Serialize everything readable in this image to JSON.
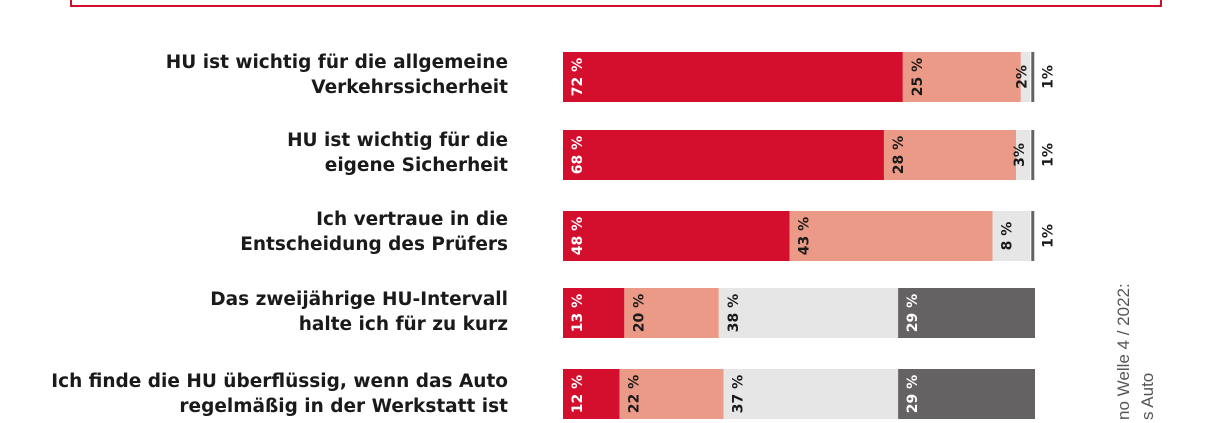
{
  "chart_data": {
    "type": "bar",
    "stacked": true,
    "orientation": "horizontal",
    "categories": [
      [
        "HU ist wichtig für die allgemeine",
        "Verkehrssicherheit"
      ],
      [
        "HU ist wichtig für die",
        "eigene Sicherheit"
      ],
      [
        "Ich vertraue in die",
        "Entscheidung des Prüfers"
      ],
      [
        "Das zweijährige HU-Intervall",
        "halte ich für zu kurz"
      ],
      [
        "Ich finde die HU überflüssig, wenn das Auto",
        "regelmäßig in der Werkstatt ist"
      ]
    ],
    "series": [
      {
        "values": [
          72,
          68,
          48,
          13,
          12
        ],
        "labels": [
          "72 %",
          "68 %",
          "48 %",
          "13 %",
          "12 %"
        ],
        "color": "#d40f2d",
        "text_color": "#ffffff"
      },
      {
        "values": [
          25,
          28,
          43,
          20,
          22
        ],
        "labels": [
          "25 %",
          "28 %",
          "43 %",
          "20 %",
          "22 %"
        ],
        "color": "#eb9a87",
        "text_color": "#1a1a1a"
      },
      {
        "values": [
          2,
          3,
          8,
          38,
          37
        ],
        "labels": [
          "2%",
          "3%",
          "8 %",
          "38 %",
          "37 %"
        ],
        "color": "#e6e6e6",
        "text_color": "#1a1a1a"
      },
      {
        "values": [
          1,
          1,
          1,
          29,
          29
        ],
        "labels": [
          "1%",
          "1%",
          "1%",
          "29 %",
          "29 %"
        ],
        "color": "#646262",
        "text_color": "#ffffff"
      }
    ]
  },
  "source": {
    "lines": [
      "no Welle 4 / 2022:",
      "s Auto"
    ]
  }
}
